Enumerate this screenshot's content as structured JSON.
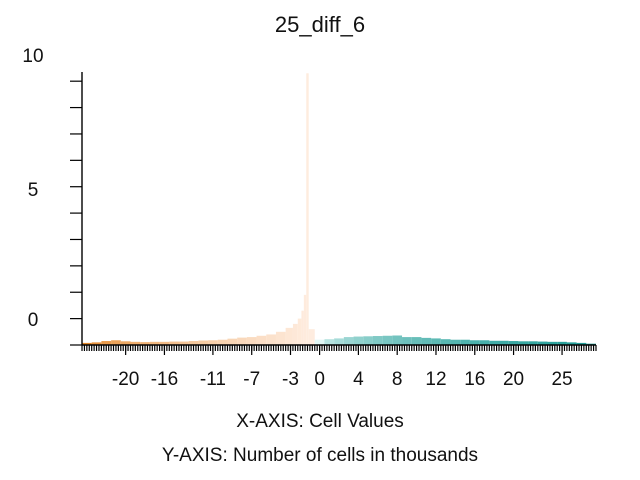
{
  "chart_data": {
    "type": "bar",
    "title": "25_diff_6",
    "xlabel": "X-AXIS: Cell Values",
    "ylabel": "Y-AXIS: Number of cells in thousands",
    "x_ticks": [
      -20,
      -16,
      -11,
      -7,
      -3,
      0,
      4,
      8,
      12,
      16,
      20,
      25
    ],
    "y_tick_labels": [
      0,
      5,
      10
    ],
    "xlim": [
      -24.5,
      28.5
    ],
    "ylim": [
      0,
      10.5
    ],
    "grid": false,
    "legend": "none",
    "colors": {
      "negative_low": "#e07a10",
      "negative_high": "#ffefe4",
      "positive_high": "#e0f6f4",
      "positive_low": "#1f9c96",
      "axis": "#000000"
    },
    "x": [
      -24,
      -23,
      -22,
      -21,
      -20,
      -19,
      -18,
      -17,
      -16,
      -15,
      -14,
      -13,
      -12,
      -11,
      -10,
      -9,
      -8,
      -7,
      -6,
      -5,
      -4,
      -3,
      -2.5,
      -2,
      -1.75,
      -1.5,
      -1.25,
      -1,
      0,
      1,
      2,
      3,
      4,
      5,
      6,
      7,
      8,
      9,
      10,
      11,
      12,
      13,
      14,
      15,
      16,
      17,
      18,
      19,
      20,
      21,
      22,
      23,
      24,
      25,
      26,
      27,
      28
    ],
    "values": [
      0.08,
      0.1,
      0.15,
      0.18,
      0.14,
      0.12,
      0.11,
      0.12,
      0.12,
      0.13,
      0.13,
      0.15,
      0.17,
      0.18,
      0.2,
      0.24,
      0.28,
      0.3,
      0.35,
      0.4,
      0.5,
      0.65,
      0.8,
      1.0,
      1.3,
      1.9,
      10.3,
      0.6,
      0.2,
      0.22,
      0.25,
      0.3,
      0.32,
      0.33,
      0.34,
      0.35,
      0.36,
      0.3,
      0.3,
      0.27,
      0.25,
      0.22,
      0.2,
      0.2,
      0.18,
      0.18,
      0.16,
      0.16,
      0.15,
      0.14,
      0.14,
      0.13,
      0.12,
      0.12,
      0.1,
      0.08,
      0.05
    ]
  }
}
